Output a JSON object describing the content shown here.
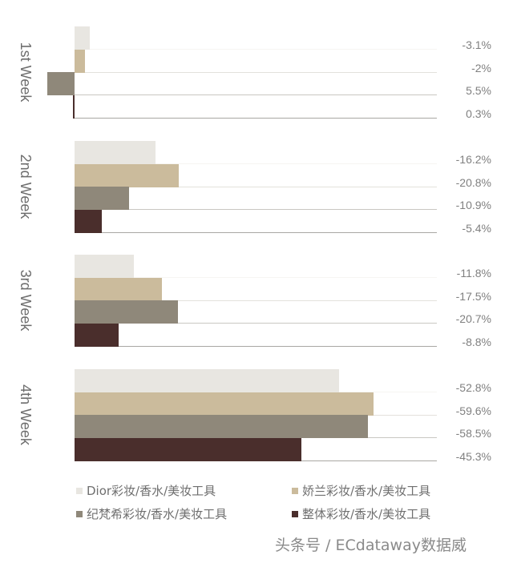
{
  "chart_data": {
    "type": "bar",
    "orientation": "horizontal",
    "title": "",
    "xlabel": "",
    "ylabel": "",
    "categories": [
      "1st Week",
      "2nd Week",
      "3rd Week",
      "4th Week"
    ],
    "series": [
      {
        "name": "Dior彩妆/香水/美妆工具",
        "color": "#e8e6e1",
        "values": [
          -3.1,
          -16.2,
          -11.8,
          -52.8
        ],
        "labels": [
          "-3.1%",
          "-16.2%",
          "-11.8%",
          "-52.8%"
        ]
      },
      {
        "name": "娇兰彩妆/香水/美妆工具",
        "color": "#cbbb9c",
        "values": [
          -2.0,
          -20.8,
          -17.5,
          -59.6
        ],
        "labels": [
          "-2%",
          "-20.8%",
          "-17.5%",
          "-59.6%"
        ]
      },
      {
        "name": "纪梵希彩妆/香水/美妆工具",
        "color": "#8f887a",
        "values": [
          5.5,
          -10.9,
          -20.7,
          -58.5
        ],
        "labels": [
          "5.5%",
          "-10.9%",
          "-20.7%",
          "-58.5%"
        ]
      },
      {
        "name": "整体彩妆/香水/美妆工具",
        "color": "#4a2e2c",
        "values": [
          0.3,
          -5.4,
          -8.8,
          -45.3
        ],
        "labels": [
          "0.3%",
          "-5.4%",
          "-8.8%",
          "-45.3%"
        ]
      }
    ],
    "note": "Decreases (negative values) extend to the right of the baseline; increases extend to the left.",
    "grid": false,
    "legend_position": "bottom",
    "value_labels_position": "right"
  },
  "weeks": [
    {
      "label": "1st Week"
    },
    {
      "label": "2nd Week"
    },
    {
      "label": "3rd Week"
    },
    {
      "label": "4th Week"
    }
  ],
  "legend": [
    {
      "label": "Dior彩妆/香水/美妆工具",
      "color": "#e8e6e1"
    },
    {
      "label": "娇兰彩妆/香水/美妆工具",
      "color": "#cbbb9c"
    },
    {
      "label": "纪梵希彩妆/香水/美妆工具",
      "color": "#8f887a"
    },
    {
      "label": "整体彩妆/香水/美妆工具",
      "color": "#4a2e2c"
    }
  ],
  "watermark": "头条号 / ECdataway数据威"
}
